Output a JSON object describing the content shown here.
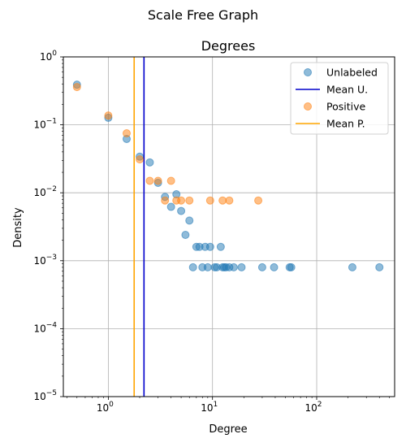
{
  "chart_data": {
    "type": "scatter",
    "suptitle": "Scale Free Graph",
    "title": "Degrees",
    "xlabel": "Degree",
    "ylabel": "Density",
    "xscale": "log",
    "yscale": "log",
    "xlim": [
      0.37,
      560
    ],
    "ylim": [
      1e-05,
      1
    ],
    "grid": true,
    "legend_position": "top-right",
    "x_ticks": [
      {
        "value": 1,
        "base": "10",
        "exp": "0"
      },
      {
        "value": 10,
        "base": "10",
        "exp": "1"
      },
      {
        "value": 100,
        "base": "10",
        "exp": "2"
      }
    ],
    "y_ticks": [
      {
        "value": 1e-05,
        "base": "10",
        "exp": "−5"
      },
      {
        "value": 0.0001,
        "base": "10",
        "exp": "−4"
      },
      {
        "value": 0.001,
        "base": "10",
        "exp": "−3"
      },
      {
        "value": 0.01,
        "base": "10",
        "exp": "−2"
      },
      {
        "value": 0.1,
        "base": "10",
        "exp": "−1"
      },
      {
        "value": 1,
        "base": "10",
        "exp": "0"
      }
    ],
    "series": [
      {
        "name": "Unlabeled",
        "kind": "scatter",
        "color": "#1f77b4",
        "points": [
          [
            0.5,
            0.39
          ],
          [
            1,
            0.127
          ],
          [
            1.5,
            0.062
          ],
          [
            2,
            0.034
          ],
          [
            2.5,
            0.028
          ],
          [
            3,
            0.014
          ],
          [
            3.5,
            0.0087
          ],
          [
            4,
            0.0062
          ],
          [
            4.5,
            0.0095
          ],
          [
            5,
            0.0054
          ],
          [
            5.5,
            0.0024
          ],
          [
            6,
            0.0039
          ],
          [
            6.5,
            0.0008
          ],
          [
            7,
            0.0016
          ],
          [
            7.5,
            0.0016
          ],
          [
            8,
            0.0008
          ],
          [
            8.5,
            0.0016
          ],
          [
            9,
            0.0008
          ],
          [
            9.5,
            0.0016
          ],
          [
            10.5,
            0.0008
          ],
          [
            11,
            0.0008
          ],
          [
            12,
            0.0016
          ],
          [
            12.5,
            0.0008
          ],
          [
            13,
            0.0008
          ],
          [
            13.5,
            0.0008
          ],
          [
            14.5,
            0.0008
          ],
          [
            16,
            0.0008
          ],
          [
            19,
            0.0008
          ],
          [
            30,
            0.0008
          ],
          [
            39,
            0.0008
          ],
          [
            55,
            0.0008
          ],
          [
            57,
            0.0008
          ],
          [
            220,
            0.0008
          ],
          [
            400,
            0.0008
          ]
        ]
      },
      {
        "name": "Mean U.",
        "kind": "vline",
        "color": "#0000cc",
        "x": 2.2
      },
      {
        "name": "Positive",
        "kind": "scatter",
        "color": "#ff7f0e",
        "points": [
          [
            0.5,
            0.36
          ],
          [
            1,
            0.137
          ],
          [
            1.5,
            0.075
          ],
          [
            2,
            0.031
          ],
          [
            2.5,
            0.015
          ],
          [
            3,
            0.015
          ],
          [
            3.5,
            0.0077
          ],
          [
            4,
            0.015
          ],
          [
            4.5,
            0.0077
          ],
          [
            5,
            0.0077
          ],
          [
            6,
            0.0077
          ],
          [
            9.5,
            0.0077
          ],
          [
            12.5,
            0.0077
          ],
          [
            14.5,
            0.0077
          ],
          [
            27.5,
            0.0077
          ]
        ]
      },
      {
        "name": "Mean P.",
        "kind": "vline",
        "color": "#ffa500",
        "x": 1.77
      }
    ]
  }
}
